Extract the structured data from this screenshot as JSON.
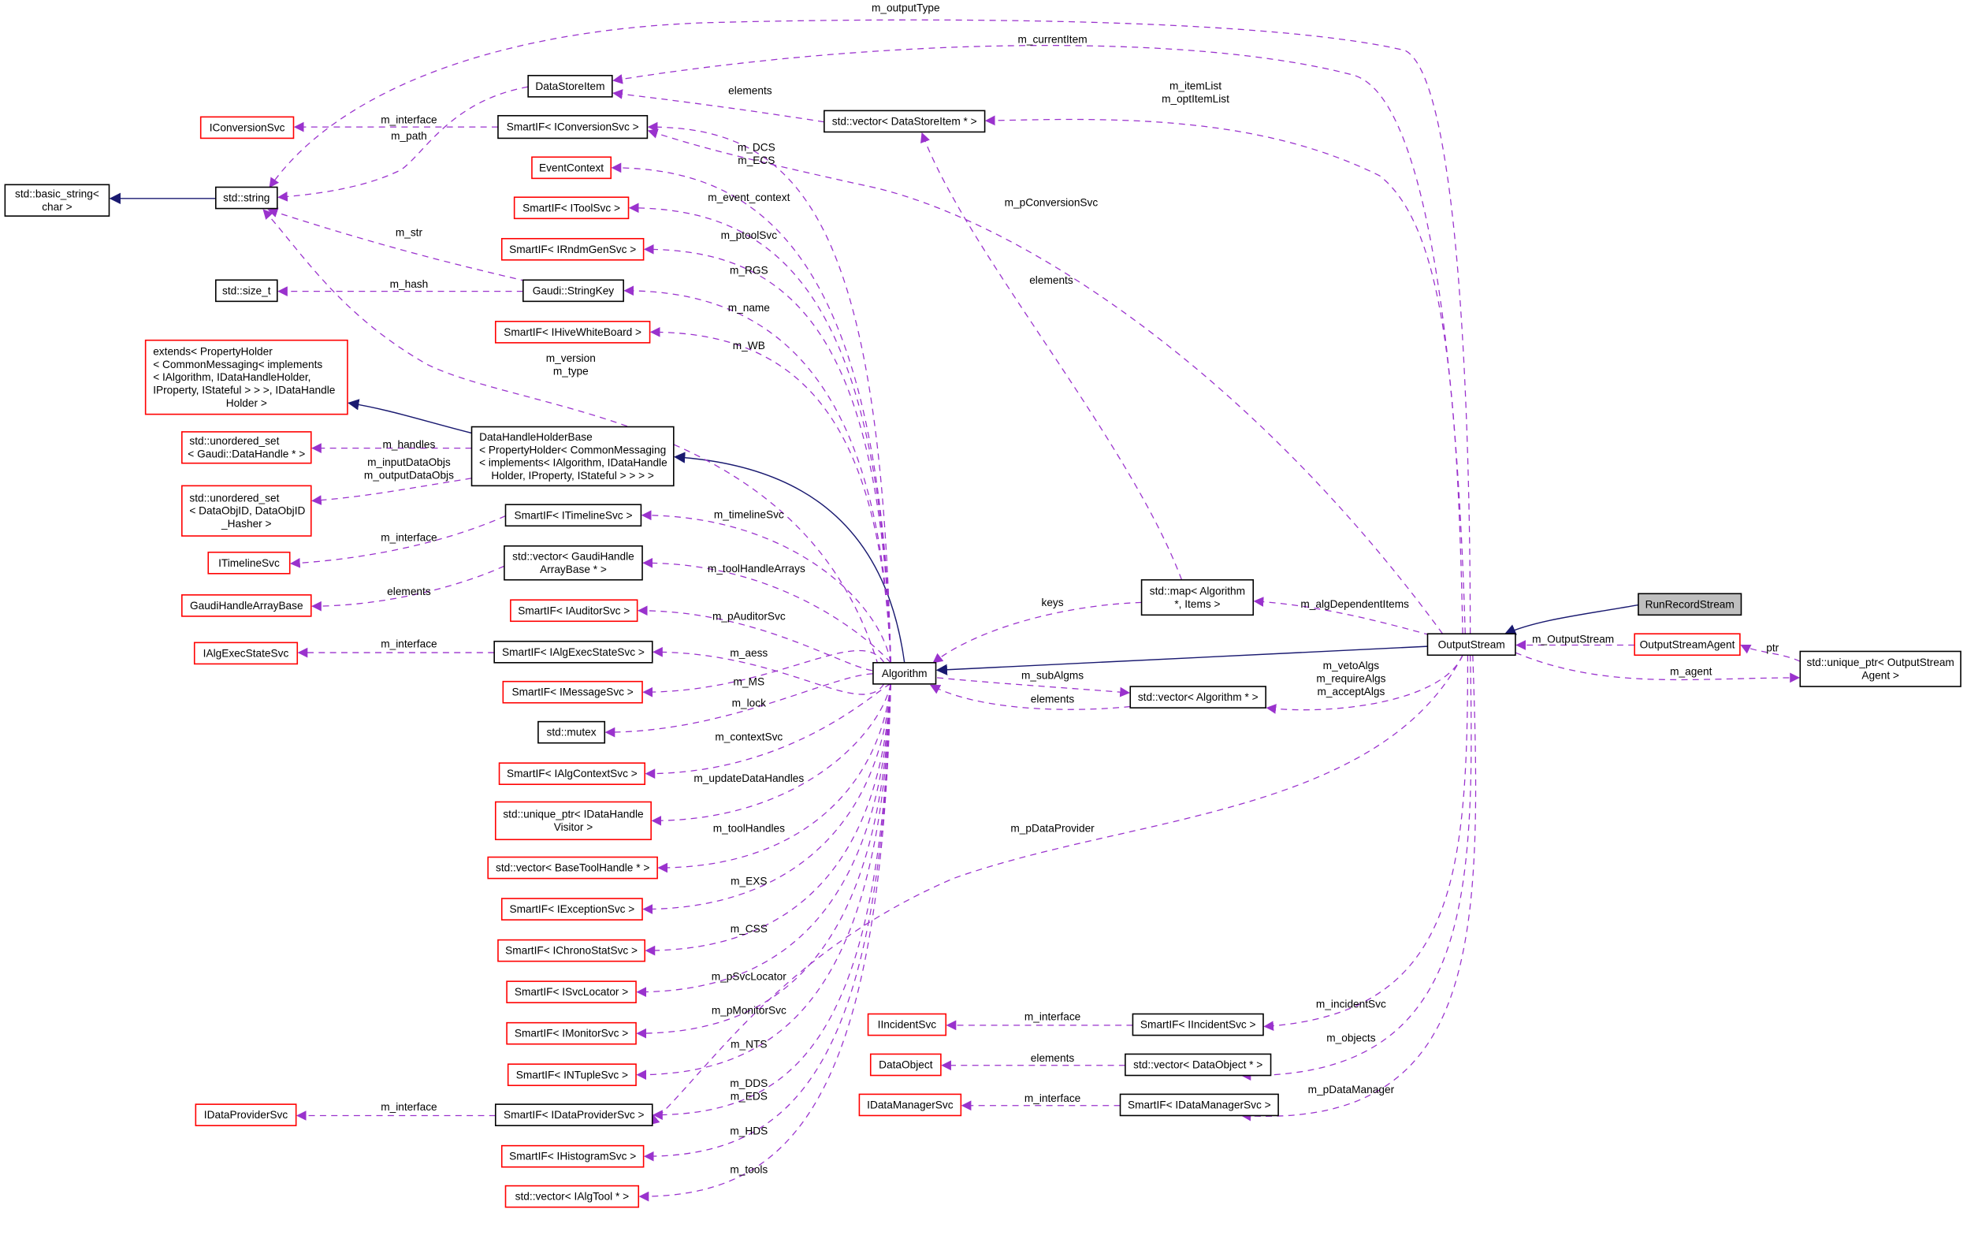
{
  "colors": {
    "usage_edge": "#9a32cd",
    "inherit_edge": "#191970",
    "undocumented_border": "#ff0000",
    "class_border": "#000000",
    "focus_fill": "#bfbfbf"
  },
  "nodes": [
    {
      "id": "basic_string",
      "lines": [
        "std::basic_string<",
        "char >"
      ],
      "kind": "class"
    },
    {
      "id": "std_string",
      "lines": [
        "std::string"
      ],
      "kind": "class"
    },
    {
      "id": "std_size_t",
      "lines": [
        "std::size_t"
      ],
      "kind": "class"
    },
    {
      "id": "IConversionSvc",
      "lines": [
        "IConversionSvc"
      ],
      "kind": "undocumented"
    },
    {
      "id": "extends",
      "lines": [
        "extends< PropertyHolder",
        "< CommonMessaging< implements",
        "< IAlgorithm, IDataHandleHolder,",
        " IProperty, IStateful > > >, IDataHandle",
        "Holder >"
      ],
      "kind": "undocumented"
    },
    {
      "id": "uset_handle",
      "lines": [
        "std::unordered_set",
        "< Gaudi::DataHandle * >"
      ],
      "kind": "undocumented"
    },
    {
      "id": "uset_objid",
      "lines": [
        "std::unordered_set",
        "< DataObjID, DataObjID",
        "_Hasher >"
      ],
      "kind": "undocumented"
    },
    {
      "id": "ITimelineSvc",
      "lines": [
        "ITimelineSvc"
      ],
      "kind": "undocumented"
    },
    {
      "id": "GaudiHandleArrayBase",
      "lines": [
        "GaudiHandleArrayBase"
      ],
      "kind": "undocumented"
    },
    {
      "id": "IAlgExecStateSvc",
      "lines": [
        "IAlgExecStateSvc"
      ],
      "kind": "undocumented"
    },
    {
      "id": "IDataProviderSvc",
      "lines": [
        "IDataProviderSvc"
      ],
      "kind": "undocumented"
    },
    {
      "id": "DataStoreItem",
      "lines": [
        "DataStoreItem"
      ],
      "kind": "class"
    },
    {
      "id": "SmartIF_IConversionSvc",
      "lines": [
        "SmartIF< IConversionSvc >"
      ],
      "kind": "class"
    },
    {
      "id": "EventContext",
      "lines": [
        "EventContext"
      ],
      "kind": "undocumented"
    },
    {
      "id": "SmartIF_IToolSvc",
      "lines": [
        "SmartIF< IToolSvc >"
      ],
      "kind": "undocumented"
    },
    {
      "id": "SmartIF_IRndmGenSvc",
      "lines": [
        "SmartIF< IRndmGenSvc >"
      ],
      "kind": "undocumented"
    },
    {
      "id": "StringKey",
      "lines": [
        "Gaudi::StringKey"
      ],
      "kind": "class"
    },
    {
      "id": "SmartIF_IHiveWhiteBoard",
      "lines": [
        "SmartIF< IHiveWhiteBoard >"
      ],
      "kind": "undocumented"
    },
    {
      "id": "DataHandleHolderBase",
      "lines": [
        "DataHandleHolderBase",
        "< PropertyHolder< CommonMessaging",
        "< implements< IAlgorithm, IDataHandle",
        "Holder, IProperty, IStateful > > > >"
      ],
      "kind": "class"
    },
    {
      "id": "SmartIF_ITimelineSvc",
      "lines": [
        "SmartIF< ITimelineSvc >"
      ],
      "kind": "class"
    },
    {
      "id": "vec_GaudiHandleArrayBase",
      "lines": [
        "std::vector< GaudiHandle",
        "ArrayBase * >"
      ],
      "kind": "class"
    },
    {
      "id": "SmartIF_IAuditorSvc",
      "lines": [
        "SmartIF< IAuditorSvc >"
      ],
      "kind": "undocumented"
    },
    {
      "id": "SmartIF_IAlgExecStateSvc",
      "lines": [
        "SmartIF< IAlgExecStateSvc >"
      ],
      "kind": "class"
    },
    {
      "id": "SmartIF_IMessageSvc",
      "lines": [
        "SmartIF< IMessageSvc >"
      ],
      "kind": "undocumented"
    },
    {
      "id": "std_mutex",
      "lines": [
        "std::mutex"
      ],
      "kind": "class"
    },
    {
      "id": "SmartIF_IAlgContextSvc",
      "lines": [
        "SmartIF< IAlgContextSvc >"
      ],
      "kind": "undocumented"
    },
    {
      "id": "uptr_IDataHandleVisitor",
      "lines": [
        "std::unique_ptr< IDataHandle",
        "Visitor >"
      ],
      "kind": "undocumented"
    },
    {
      "id": "vec_BaseToolHandle",
      "lines": [
        "std::vector< BaseToolHandle * >"
      ],
      "kind": "undocumented"
    },
    {
      "id": "SmartIF_IExceptionSvc",
      "lines": [
        "SmartIF< IExceptionSvc >"
      ],
      "kind": "undocumented"
    },
    {
      "id": "SmartIF_IChronoStatSvc",
      "lines": [
        "SmartIF< IChronoStatSvc >"
      ],
      "kind": "undocumented"
    },
    {
      "id": "SmartIF_ISvcLocator",
      "lines": [
        "SmartIF< ISvcLocator >"
      ],
      "kind": "undocumented"
    },
    {
      "id": "SmartIF_IMonitorSvc",
      "lines": [
        "SmartIF< IMonitorSvc >"
      ],
      "kind": "undocumented"
    },
    {
      "id": "SmartIF_INTupleSvc",
      "lines": [
        "SmartIF< INTupleSvc >"
      ],
      "kind": "undocumented"
    },
    {
      "id": "SmartIF_IDataProviderSvc",
      "lines": [
        "SmartIF< IDataProviderSvc >"
      ],
      "kind": "class"
    },
    {
      "id": "SmartIF_IHistogramSvc",
      "lines": [
        "SmartIF< IHistogramSvc >"
      ],
      "kind": "undocumented"
    },
    {
      "id": "vec_IAlgTool",
      "lines": [
        "std::vector< IAlgTool * >"
      ],
      "kind": "undocumented"
    },
    {
      "id": "Algorithm",
      "lines": [
        "Algorithm"
      ],
      "kind": "class"
    },
    {
      "id": "vec_DataStoreItem",
      "lines": [
        "std::vector< DataStoreItem * >"
      ],
      "kind": "class"
    },
    {
      "id": "map_Algorithm_Items",
      "lines": [
        "std::map< Algorithm",
        "*, Items >"
      ],
      "kind": "class"
    },
    {
      "id": "vec_Algorithm",
      "lines": [
        "std::vector< Algorithm * >"
      ],
      "kind": "class"
    },
    {
      "id": "OutputStream",
      "lines": [
        "OutputStream"
      ],
      "kind": "class"
    },
    {
      "id": "RunRecordStream",
      "lines": [
        "RunRecordStream"
      ],
      "kind": "focus"
    },
    {
      "id": "OutputStreamAgent",
      "lines": [
        "OutputStreamAgent"
      ],
      "kind": "undocumented"
    },
    {
      "id": "uptr_OutputStreamAgent",
      "lines": [
        "std::unique_ptr< OutputStream",
        "Agent >"
      ],
      "kind": "class"
    },
    {
      "id": "IIncidentSvc",
      "lines": [
        "IIncidentSvc"
      ],
      "kind": "undocumented"
    },
    {
      "id": "SmartIF_IIncidentSvc",
      "lines": [
        "SmartIF< IIncidentSvc >"
      ],
      "kind": "class"
    },
    {
      "id": "DataObject",
      "lines": [
        "DataObject"
      ],
      "kind": "undocumented"
    },
    {
      "id": "vec_DataObject",
      "lines": [
        "std::vector< DataObject * >"
      ],
      "kind": "class"
    },
    {
      "id": "IDataManagerSvc",
      "lines": [
        "IDataManagerSvc"
      ],
      "kind": "undocumented"
    },
    {
      "id": "SmartIF_IDataManagerSvc",
      "lines": [
        "SmartIF< IDataManagerSvc >"
      ],
      "kind": "class"
    }
  ],
  "edges": [
    {
      "from": "std_string",
      "to": "basic_string",
      "type": "inherit",
      "labels": []
    },
    {
      "from": "DataHandleHolderBase",
      "to": "extends",
      "type": "inherit",
      "labels": []
    },
    {
      "from": "Algorithm",
      "to": "DataHandleHolderBase",
      "type": "inherit",
      "labels": []
    },
    {
      "from": "OutputStream",
      "to": "Algorithm",
      "type": "inherit",
      "labels": []
    },
    {
      "from": "RunRecordStream",
      "to": "OutputStream",
      "type": "inherit",
      "labels": []
    },
    {
      "from": "DataStoreItem",
      "to": "std_string",
      "type": "use",
      "labels": [
        "m_path"
      ]
    },
    {
      "from": "OutputStream",
      "to": "std_string",
      "type": "use",
      "labels": [
        "m_outputType"
      ]
    },
    {
      "from": "StringKey",
      "to": "std_string",
      "type": "use",
      "labels": [
        "m_str"
      ]
    },
    {
      "from": "Algorithm",
      "to": "std_string",
      "type": "use",
      "labels": [
        "m_version",
        "m_type"
      ]
    },
    {
      "from": "StringKey",
      "to": "std_size_t",
      "type": "use",
      "labels": [
        "m_hash"
      ]
    },
    {
      "from": "SmartIF_IConversionSvc",
      "to": "IConversionSvc",
      "type": "use",
      "labels": [
        "m_interface"
      ]
    },
    {
      "from": "DataHandleHolderBase",
      "to": "uset_handle",
      "type": "use",
      "labels": [
        "m_handles"
      ]
    },
    {
      "from": "DataHandleHolderBase",
      "to": "uset_objid",
      "type": "use",
      "labels": [
        "m_inputDataObjs",
        "m_outputDataObjs"
      ]
    },
    {
      "from": "SmartIF_ITimelineSvc",
      "to": "ITimelineSvc",
      "type": "use",
      "labels": [
        "m_interface"
      ]
    },
    {
      "from": "vec_GaudiHandleArrayBase",
      "to": "GaudiHandleArrayBase",
      "type": "use",
      "labels": [
        "elements"
      ]
    },
    {
      "from": "SmartIF_IAlgExecStateSvc",
      "to": "IAlgExecStateSvc",
      "type": "use",
      "labels": [
        "m_interface"
      ]
    },
    {
      "from": "SmartIF_IDataProviderSvc",
      "to": "IDataProviderSvc",
      "type": "use",
      "labels": [
        "m_interface"
      ]
    },
    {
      "from": "OutputStream",
      "to": "DataStoreItem",
      "type": "use",
      "labels": [
        "m_currentItem"
      ]
    },
    {
      "from": "vec_DataStoreItem",
      "to": "DataStoreItem",
      "type": "use",
      "labels": [
        "elements"
      ]
    },
    {
      "from": "OutputStream",
      "to": "vec_DataStoreItem",
      "type": "use",
      "labels": [
        "m_itemList",
        "m_optItemList"
      ]
    },
    {
      "from": "OutputStream",
      "to": "SmartIF_IConversionSvc",
      "type": "use",
      "labels": [
        "m_pConversionSvc"
      ]
    },
    {
      "from": "Algorithm",
      "to": "SmartIF_IConversionSvc",
      "type": "use",
      "labels": [
        "m_DCS",
        "m_ECS"
      ]
    },
    {
      "from": "Algorithm",
      "to": "EventContext",
      "type": "use",
      "labels": [
        "m_event_context"
      ]
    },
    {
      "from": "Algorithm",
      "to": "SmartIF_IToolSvc",
      "type": "use",
      "labels": [
        "m_ptoolSvc"
      ]
    },
    {
      "from": "Algorithm",
      "to": "SmartIF_IRndmGenSvc",
      "type": "use",
      "labels": [
        "m_RGS"
      ]
    },
    {
      "from": "Algorithm",
      "to": "StringKey",
      "type": "use",
      "labels": [
        "m_name"
      ]
    },
    {
      "from": "Algorithm",
      "to": "SmartIF_IHiveWhiteBoard",
      "type": "use",
      "labels": [
        "m_WB"
      ]
    },
    {
      "from": "Algorithm",
      "to": "SmartIF_ITimelineSvc",
      "type": "use",
      "labels": [
        "m_timelineSvc"
      ]
    },
    {
      "from": "Algorithm",
      "to": "vec_GaudiHandleArrayBase",
      "type": "use",
      "labels": [
        "m_toolHandleArrays"
      ]
    },
    {
      "from": "Algorithm",
      "to": "SmartIF_IAuditorSvc",
      "type": "use",
      "labels": [
        "m_pAuditorSvc"
      ]
    },
    {
      "from": "Algorithm",
      "to": "SmartIF_IAlgExecStateSvc",
      "type": "use",
      "labels": [
        "m_aess"
      ]
    },
    {
      "from": "Algorithm",
      "to": "SmartIF_IMessageSvc",
      "type": "use",
      "labels": [
        "m_MS"
      ]
    },
    {
      "from": "Algorithm",
      "to": "std_mutex",
      "type": "use",
      "labels": [
        "m_lock"
      ]
    },
    {
      "from": "Algorithm",
      "to": "SmartIF_IAlgContextSvc",
      "type": "use",
      "labels": [
        "m_contextSvc"
      ]
    },
    {
      "from": "Algorithm",
      "to": "uptr_IDataHandleVisitor",
      "type": "use",
      "labels": [
        "m_updateDataHandles"
      ]
    },
    {
      "from": "Algorithm",
      "to": "vec_BaseToolHandle",
      "type": "use",
      "labels": [
        "m_toolHandles"
      ]
    },
    {
      "from": "Algorithm",
      "to": "SmartIF_IExceptionSvc",
      "type": "use",
      "labels": [
        "m_EXS"
      ]
    },
    {
      "from": "Algorithm",
      "to": "SmartIF_IChronoStatSvc",
      "type": "use",
      "labels": [
        "m_CSS"
      ]
    },
    {
      "from": "Algorithm",
      "to": "SmartIF_ISvcLocator",
      "type": "use",
      "labels": [
        "m_pSvcLocator"
      ]
    },
    {
      "from": "Algorithm",
      "to": "SmartIF_IMonitorSvc",
      "type": "use",
      "labels": [
        "m_pMonitorSvc"
      ]
    },
    {
      "from": "Algorithm",
      "to": "SmartIF_INTupleSvc",
      "type": "use",
      "labels": [
        "m_NTS"
      ]
    },
    {
      "from": "Algorithm",
      "to": "SmartIF_IDataProviderSvc",
      "type": "use",
      "labels": [
        "m_DDS",
        "m_EDS"
      ]
    },
    {
      "from": "Algorithm",
      "to": "SmartIF_IHistogramSvc",
      "type": "use",
      "labels": [
        "m_HDS"
      ]
    },
    {
      "from": "Algorithm",
      "to": "vec_IAlgTool",
      "type": "use",
      "labels": [
        "m_tools"
      ]
    },
    {
      "from": "map_Algorithm_Items",
      "to": "vec_DataStoreItem",
      "type": "use",
      "labels": [
        "elements"
      ]
    },
    {
      "from": "map_Algorithm_Items",
      "to": "Algorithm",
      "type": "use",
      "labels": [
        "keys"
      ]
    },
    {
      "from": "Algorithm",
      "to": "vec_Algorithm",
      "type": "use",
      "labels": [
        "m_subAlgms"
      ]
    },
    {
      "from": "vec_Algorithm",
      "to": "Algorithm",
      "type": "use",
      "labels": [
        "elements"
      ]
    },
    {
      "from": "OutputStream",
      "to": "map_Algorithm_Items",
      "type": "use",
      "labels": [
        "m_algDependentItems"
      ]
    },
    {
      "from": "OutputStream",
      "to": "vec_Algorithm",
      "type": "use",
      "labels": [
        "m_vetoAlgs",
        "m_requireAlgs",
        "m_acceptAlgs"
      ]
    },
    {
      "from": "OutputStreamAgent",
      "to": "OutputStream",
      "type": "use",
      "labels": [
        "m_OutputStream"
      ]
    },
    {
      "from": "OutputStream",
      "to": "uptr_OutputStreamAgent",
      "type": "use",
      "labels": [
        "m_agent"
      ]
    },
    {
      "from": "uptr_OutputStreamAgent",
      "to": "OutputStreamAgent",
      "type": "use",
      "labels": [
        "ptr"
      ]
    },
    {
      "from": "OutputStream",
      "to": "SmartIF_IDataProviderSvc",
      "type": "use",
      "labels": [
        "m_pDataProvider"
      ]
    },
    {
      "from": "OutputStream",
      "to": "SmartIF_IIncidentSvc",
      "type": "use",
      "labels": [
        "m_incidentSvc"
      ]
    },
    {
      "from": "OutputStream",
      "to": "vec_DataObject",
      "type": "use",
      "labels": [
        "m_objects"
      ]
    },
    {
      "from": "OutputStream",
      "to": "SmartIF_IDataManagerSvc",
      "type": "use",
      "labels": [
        "m_pDataManager"
      ]
    },
    {
      "from": "SmartIF_IIncidentSvc",
      "to": "IIncidentSvc",
      "type": "use",
      "labels": [
        "m_interface"
      ]
    },
    {
      "from": "vec_DataObject",
      "to": "DataObject",
      "type": "use",
      "labels": [
        "elements"
      ]
    },
    {
      "from": "SmartIF_IDataManagerSvc",
      "to": "IDataManagerSvc",
      "type": "use",
      "labels": [
        "m_interface"
      ]
    }
  ]
}
